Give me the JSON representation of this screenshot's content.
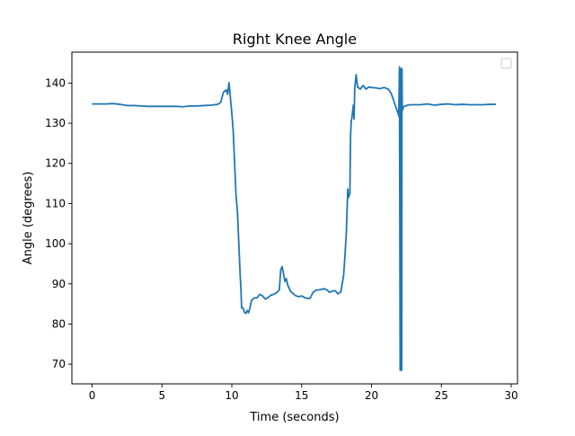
{
  "chart_data": {
    "type": "line",
    "title": "Right Knee Angle",
    "xlabel": "Time (seconds)",
    "ylabel": "Angle (degrees)",
    "xlim": [
      -1.45,
      30.45
    ],
    "ylim": [
      65.1,
      147.7
    ],
    "xticks": [
      0,
      5,
      10,
      15,
      20,
      25,
      30
    ],
    "yticks": [
      70,
      80,
      90,
      100,
      110,
      120,
      130,
      140
    ],
    "grid": false,
    "legend": "top-right (empty)",
    "line_color": "#1f77b4",
    "series": [
      {
        "x": [
          0,
          0.5,
          1.0,
          1.5,
          2.0,
          2.5,
          3.0,
          3.5,
          4.0,
          5.0,
          6.0,
          6.5,
          7.0,
          7.5,
          8.0,
          8.5,
          9.0,
          9.2,
          9.4,
          9.6,
          9.7,
          9.8,
          9.9,
          10.0,
          10.1,
          10.2,
          10.3,
          10.4,
          10.5,
          10.6,
          10.65,
          10.7,
          10.8,
          10.9,
          11.0,
          11.1,
          11.2,
          11.3,
          11.4,
          11.6,
          11.8,
          12.0,
          12.2,
          12.4,
          12.6,
          12.8,
          13.0,
          13.2,
          13.4,
          13.5,
          13.6,
          13.7,
          13.8,
          13.9,
          14.0,
          14.2,
          14.4,
          14.6,
          14.8,
          15.0,
          15.2,
          15.4,
          15.6,
          15.8,
          16.0,
          16.2,
          16.4,
          16.6,
          16.8,
          17.0,
          17.2,
          17.4,
          17.6,
          17.8,
          18.0,
          18.1,
          18.2,
          18.3,
          18.35,
          18.4,
          18.45,
          18.5,
          18.55,
          18.6,
          18.7,
          18.75,
          18.8,
          18.9,
          19.0,
          19.2,
          19.4,
          19.6,
          19.8,
          20.0,
          20.3,
          20.6,
          20.9,
          21.2,
          21.4,
          21.6,
          21.8,
          21.9,
          21.95,
          22.0,
          22.05,
          22.1,
          22.12,
          22.14,
          22.16,
          22.18,
          22.2,
          22.22,
          22.24,
          22.26,
          22.3,
          22.4,
          22.6,
          22.8,
          23.0,
          23.5,
          24.0,
          24.5,
          25.0,
          25.5,
          26.0,
          26.5,
          27.0,
          27.5,
          28.0,
          28.5,
          28.9
        ],
        "y": [
          134.8,
          134.8,
          134.8,
          134.9,
          134.7,
          134.4,
          134.4,
          134.3,
          134.2,
          134.2,
          134.2,
          134.1,
          134.3,
          134.3,
          134.4,
          134.5,
          134.7,
          135.2,
          137.7,
          138.3,
          137.2,
          140.1,
          136.2,
          132.5,
          128.0,
          120.0,
          112.0,
          108.0,
          100.0,
          92.0,
          89.0,
          84.0,
          84.0,
          83.0,
          82.6,
          83.4,
          82.8,
          84.0,
          85.8,
          86.5,
          86.5,
          87.4,
          87.0,
          86.2,
          86.6,
          87.2,
          87.4,
          87.8,
          88.5,
          93.5,
          94.3,
          92.5,
          90.6,
          91.3,
          89.7,
          88.2,
          87.5,
          87.0,
          86.8,
          87.0,
          86.6,
          86.4,
          86.4,
          87.8,
          88.4,
          88.5,
          88.6,
          88.8,
          88.5,
          87.9,
          88.2,
          88.3,
          87.5,
          88.0,
          92.0,
          97.0,
          103.0,
          113.6,
          111.5,
          112.0,
          112.5,
          127.0,
          130.5,
          131.5,
          134.5,
          131.0,
          138.8,
          142.1,
          139.0,
          138.5,
          139.4,
          138.5,
          139.0,
          138.9,
          138.8,
          138.6,
          138.9,
          138.5,
          137.5,
          135.5,
          133.4,
          132.5,
          131.8,
          144.0,
          68.5,
          143.5,
          68.5,
          143.7,
          68.5,
          143.5,
          133.5,
          133.2,
          133.5,
          133.8,
          134.1,
          134.3,
          134.5,
          134.6,
          134.6,
          134.6,
          134.8,
          134.5,
          134.7,
          134.8,
          134.6,
          134.7,
          134.6,
          134.6,
          134.6,
          134.7,
          134.7
        ]
      }
    ]
  }
}
